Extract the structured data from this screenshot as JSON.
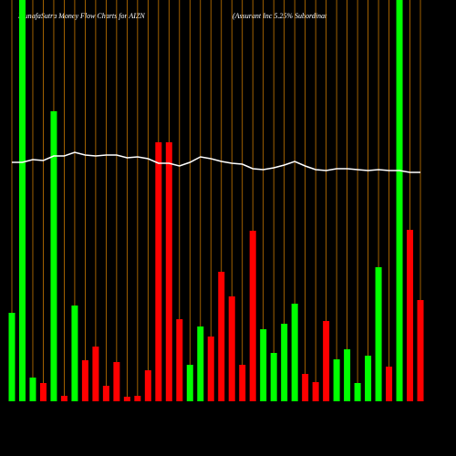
{
  "chart_data": {
    "type": "bar",
    "title": "MunafaSutra  Money Flow  Charts for AIZN",
    "subtitle": "(Assurant Inc 5.25% Subordinat",
    "categories": [
      null,
      null,
      null,
      null,
      null,
      null,
      null,
      null,
      null,
      null,
      null,
      null,
      null,
      null,
      null,
      null,
      null,
      null,
      null,
      null,
      null,
      null,
      null,
      null,
      null,
      null,
      null,
      null,
      null,
      null,
      null,
      null,
      null,
      null,
      null,
      null,
      null,
      null,
      null,
      null
    ],
    "series": [
      {
        "values": [
          97,
          440,
          26,
          20,
          318,
          6,
          105,
          45,
          60,
          17,
          43,
          5,
          6,
          34,
          284,
          284,
          90,
          40,
          82,
          71,
          142,
          115,
          40,
          187,
          79,
          53,
          85,
          107,
          30,
          21,
          88,
          46,
          57,
          20,
          50,
          147,
          38,
          440,
          188,
          111
        ],
        "colors": [
          "#00ff00",
          "#00ff00",
          "#00ff00",
          "#ff0000",
          "#00ff00",
          "#ff0000",
          "#00ff00",
          "#ff0000",
          "#ff0000",
          "#ff0000",
          "#ff0000",
          "#ff0000",
          "#ff0000",
          "#ff0000",
          "#ff0000",
          "#ff0000",
          "#ff0000",
          "#00ff00",
          "#00ff00",
          "#ff0000",
          "#ff0000",
          "#ff0000",
          "#ff0000",
          "#ff0000",
          "#00ff00",
          "#00ff00",
          "#00ff00",
          "#00ff00",
          "#ff0000",
          "#ff0000",
          "#ff0000",
          "#00ff00",
          "#00ff00",
          "#00ff00",
          "#00ff00",
          "#00ff00",
          "#ff0000",
          "#00ff00",
          "#ff0000",
          "#ff0000"
        ]
      },
      {
        "type": "line",
        "color": "#ffffff",
        "values": [
          262,
          262,
          265,
          264,
          269,
          269,
          273,
          270,
          269,
          270,
          270,
          267,
          268,
          266,
          261,
          261,
          258,
          262,
          268,
          266,
          263,
          261,
          260,
          255,
          254,
          256,
          259,
          263,
          258,
          254,
          253,
          255,
          255,
          254,
          253,
          254,
          253,
          253,
          251,
          251
        ]
      }
    ],
    "grid_color": "#c87800",
    "ylim": [
      0,
      440
    ]
  }
}
